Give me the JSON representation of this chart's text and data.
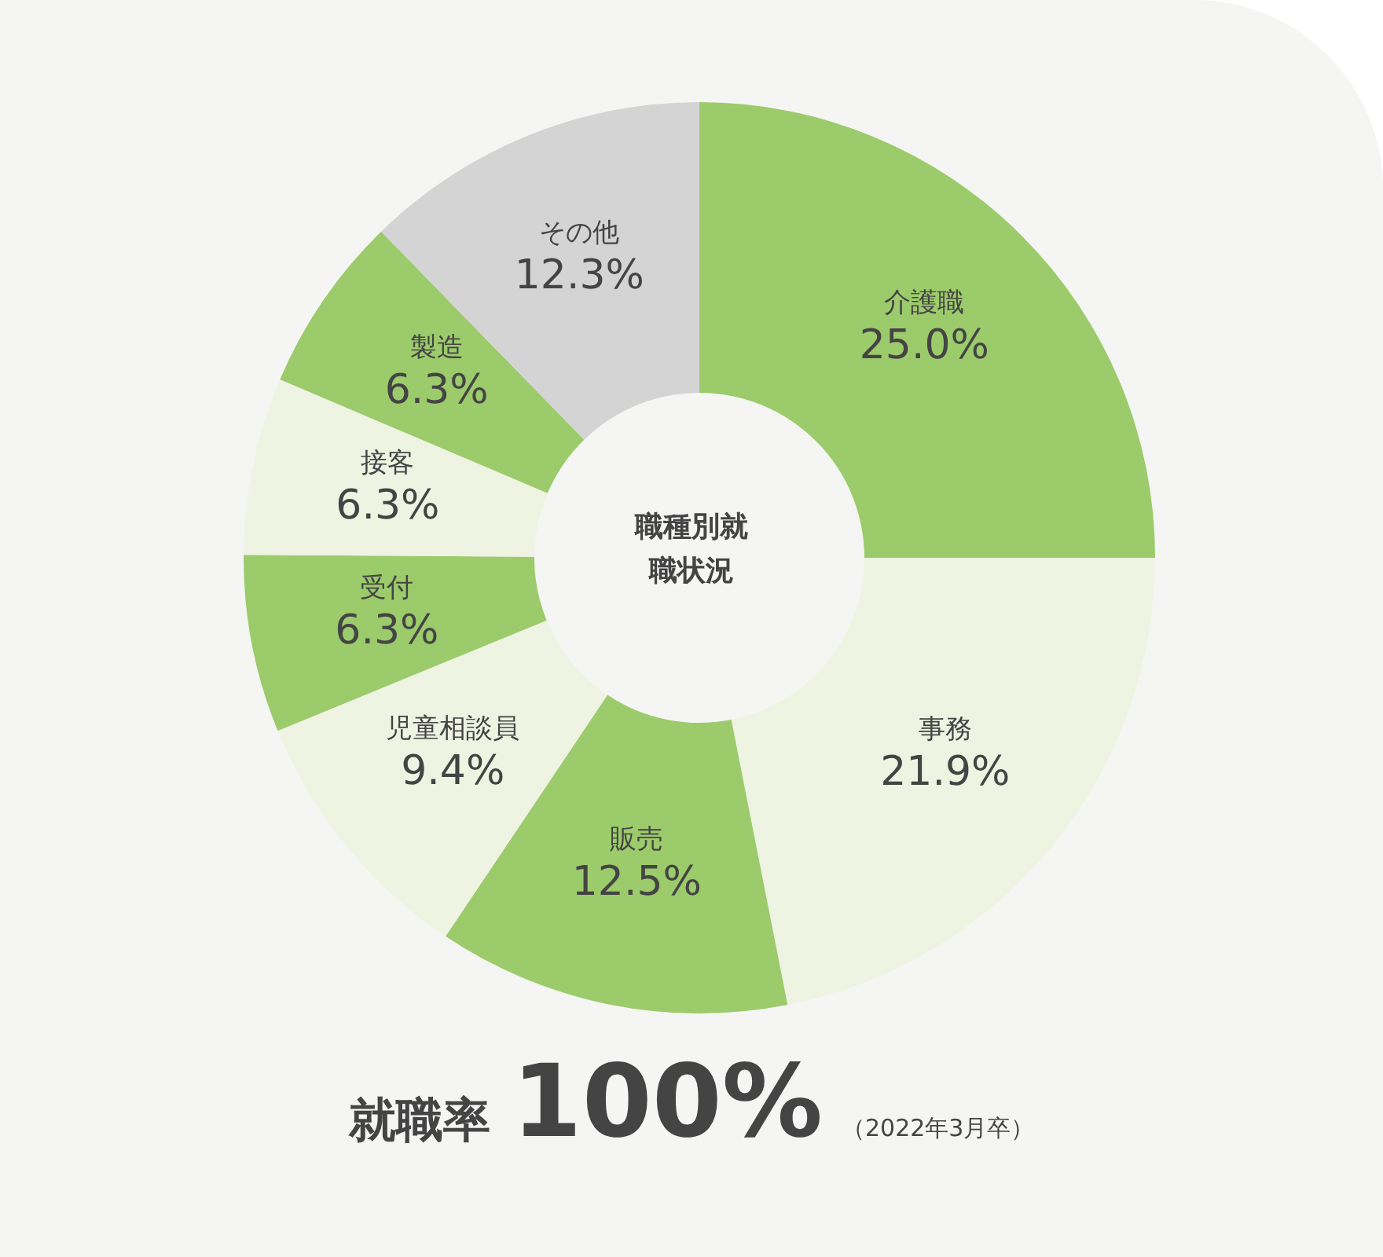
{
  "chart_data": {
    "type": "donut",
    "title": "職種別就職状況",
    "categories": [
      "介護職",
      "事務",
      "販売",
      "児童相談員",
      "受付",
      "接客",
      "製造",
      "その他"
    ],
    "values": [
      25.0,
      21.9,
      12.5,
      9.4,
      6.3,
      6.3,
      6.3,
      12.3
    ],
    "value_labels": [
      "25.0%",
      "21.9%",
      "12.5%",
      "9.4%",
      "6.3%",
      "6.3%",
      "6.3%",
      "12.3%"
    ],
    "colors": [
      "#9ccb6b",
      "#eff3e2",
      "#9ccb6b",
      "#eff3e2",
      "#9ccb6b",
      "#eff3e2",
      "#9ccb6b",
      "#d4d4d4"
    ],
    "annotations": [
      "就職率",
      "100%",
      "（2022年3月卒）"
    ],
    "legend": false
  }
}
